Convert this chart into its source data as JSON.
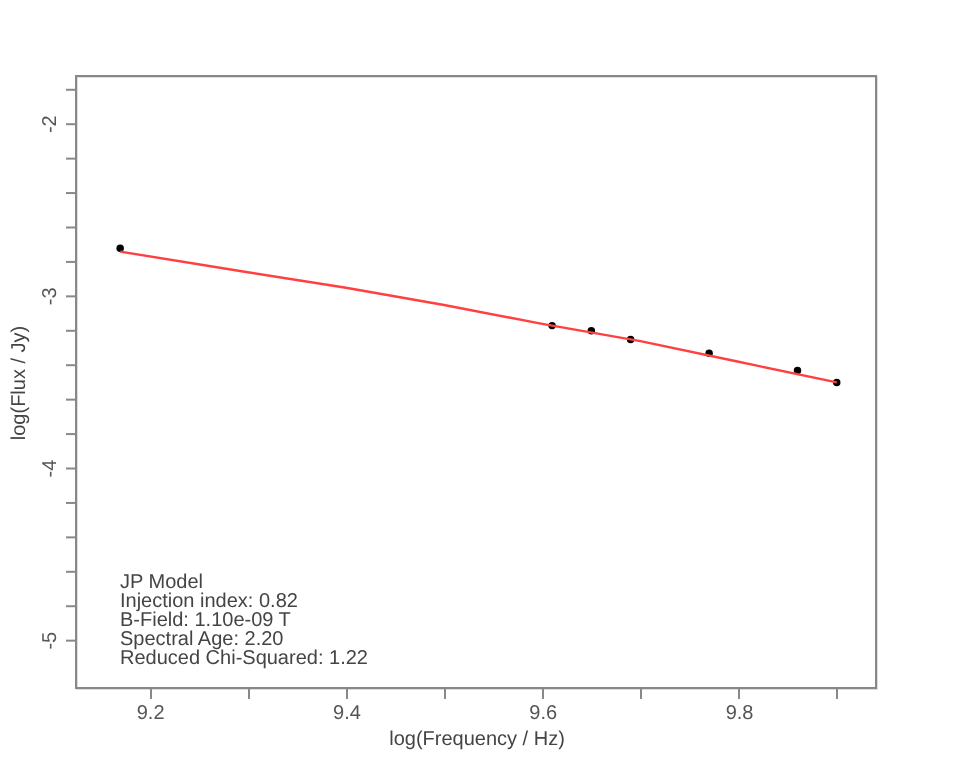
{
  "chart_data": {
    "type": "scatter",
    "xlabel": "log(Frequency / Hz)",
    "ylabel": "log(Flux / Jy)",
    "xlim": [
      9.125,
      9.94
    ],
    "ylim": [
      -5.275,
      -1.72
    ],
    "xticks": [
      9.2,
      {
        "value": 9.3,
        "label": null
      },
      9.4,
      {
        "value": 9.5,
        "label": null
      },
      9.6,
      {
        "value": 9.7,
        "label": null
      },
      9.8,
      {
        "value": 9.9,
        "label": null
      }
    ],
    "yticks": [
      -5,
      {
        "value": -4.8,
        "label": null
      },
      {
        "value": -4.6,
        "label": null
      },
      {
        "value": -4.4,
        "label": null
      },
      {
        "value": -4.2,
        "label": null
      },
      -4,
      {
        "value": -3.8,
        "label": null
      },
      {
        "value": -3.6,
        "label": null
      },
      {
        "value": -3.4,
        "label": null
      },
      {
        "value": -3.2,
        "label": null
      },
      -3,
      {
        "value": -2.8,
        "label": null
      },
      {
        "value": -2.6,
        "label": null
      },
      {
        "value": -2.4,
        "label": null
      },
      {
        "value": -2.2,
        "label": null
      },
      -2,
      {
        "value": -1.8,
        "label": null
      }
    ],
    "grid": false,
    "series": [
      {
        "type": "scatter",
        "color": "#000000",
        "marker": "circle",
        "x": [
          9.17,
          9.61,
          9.65,
          9.69,
          9.77,
          9.86,
          9.9
        ],
        "values": [
          -2.72,
          -3.17,
          -3.2,
          -3.25,
          -3.33,
          -3.43,
          -3.5
        ]
      },
      {
        "type": "line",
        "color": "#ff4040",
        "marker": "none",
        "line_style": "solid",
        "x": [
          9.17,
          9.3,
          9.4,
          9.5,
          9.6,
          9.7,
          9.8,
          9.9
        ],
        "values": [
          -2.74,
          -2.86,
          -2.95,
          -3.05,
          -3.16,
          -3.26,
          -3.38,
          -3.5
        ]
      }
    ],
    "annotations": [
      "JP Model",
      "Injection index: 0.82",
      "B-Field: 1.10e-09 T",
      "Spectral Age: 2.20",
      "Reduced Chi-Squared: 1.22"
    ]
  }
}
